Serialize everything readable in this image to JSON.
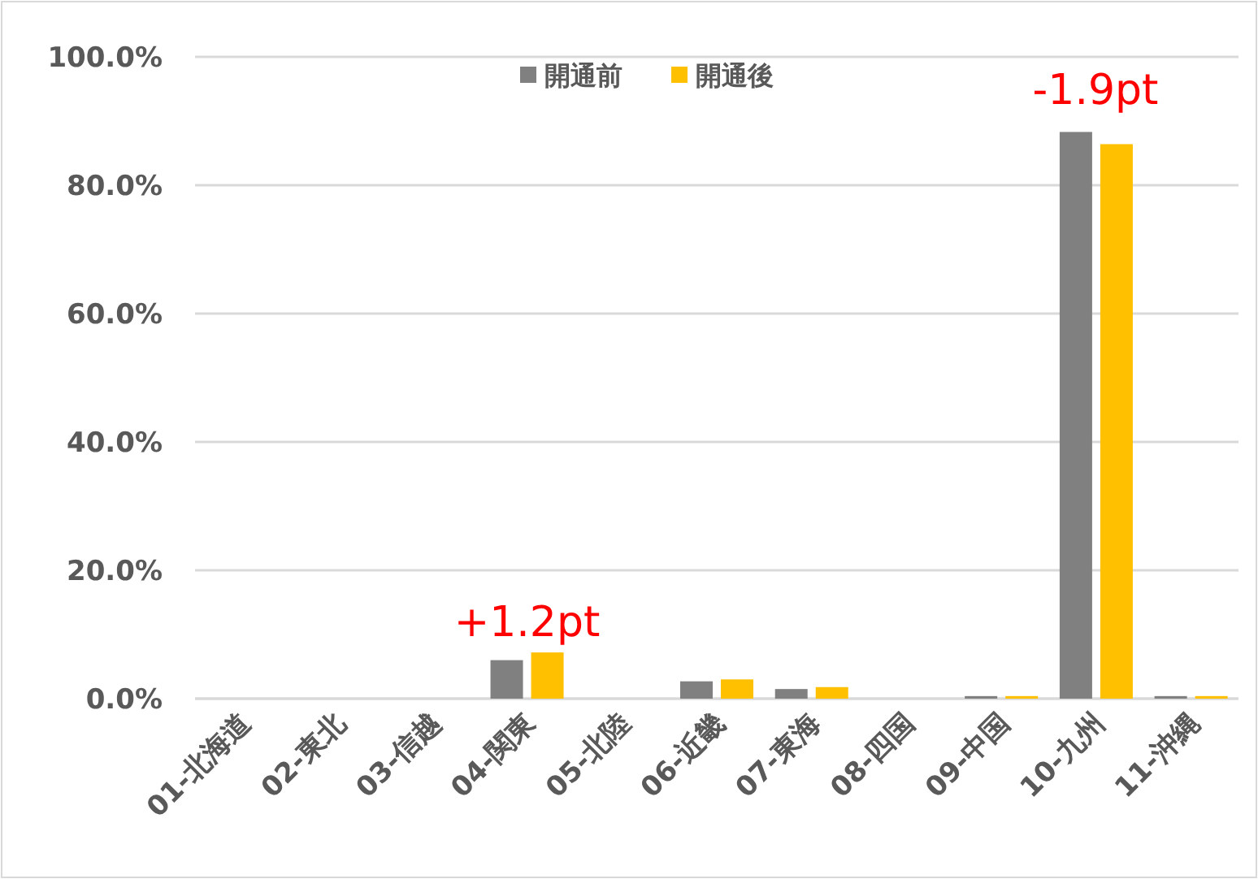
{
  "chart_data": {
    "type": "bar",
    "categories": [
      "01-北海道",
      "02-東北",
      "03-信越",
      "04-関東",
      "05-北陸",
      "06-近畿",
      "07-東海",
      "08-四国",
      "09-中国",
      "10-九州",
      "11-沖縄"
    ],
    "series": [
      {
        "name": "開通前",
        "color": "#808080",
        "values": [
          0,
          0,
          0,
          6.0,
          0,
          2.7,
          1.5,
          0,
          0.4,
          88.3,
          0.4
        ]
      },
      {
        "name": "開通後",
        "color": "#ffc000",
        "values": [
          0,
          0,
          0,
          7.2,
          0,
          3.0,
          1.8,
          0,
          0.4,
          86.4,
          0.4
        ]
      }
    ],
    "ylim": [
      0,
      100
    ],
    "yticks": [
      {
        "value": 0,
        "label": "0.0%"
      },
      {
        "value": 20,
        "label": "20.0%"
      },
      {
        "value": 40,
        "label": "40.0%"
      },
      {
        "value": 60,
        "label": "60.0%"
      },
      {
        "value": 80,
        "label": "80.0%"
      },
      {
        "value": 100,
        "label": "100.0%"
      }
    ],
    "grid": "y",
    "legend": "top",
    "annotations": [
      {
        "text": "+1.2pt",
        "x": "04-関東",
        "y": 7.2
      },
      "-1.9pt"
    ]
  }
}
